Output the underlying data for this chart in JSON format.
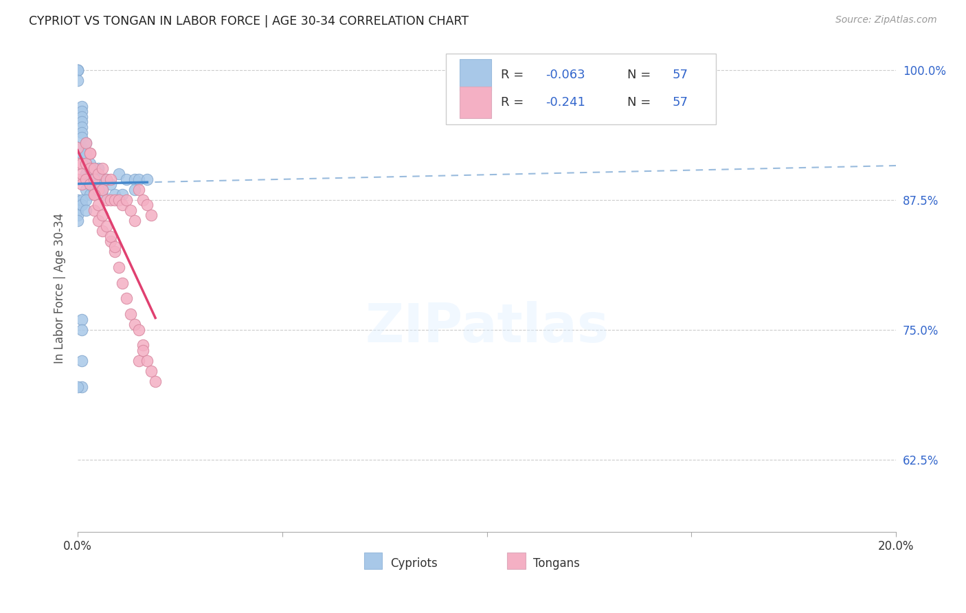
{
  "title": "CYPRIOT VS TONGAN IN LABOR FORCE | AGE 30-34 CORRELATION CHART",
  "source": "Source: ZipAtlas.com",
  "ylabel": "In Labor Force | Age 30-34",
  "xlim": [
    0.0,
    0.2
  ],
  "ylim": [
    0.555,
    1.025
  ],
  "yticks": [
    0.625,
    0.75,
    0.875,
    1.0
  ],
  "ytick_labels": [
    "62.5%",
    "75.0%",
    "87.5%",
    "100.0%"
  ],
  "xticks": [
    0.0,
    0.05,
    0.1,
    0.15,
    0.2
  ],
  "xtick_labels": [
    "0.0%",
    "",
    "",
    "",
    "20.0%"
  ],
  "cypriot_color": "#a8c8e8",
  "cypriot_edge": "#88aad0",
  "tongan_color": "#f4b0c4",
  "tongan_edge": "#d888a0",
  "cypriot_line_color": "#4488cc",
  "tongan_line_color": "#e04070",
  "dashed_line_color": "#99bbdd",
  "watermark": "ZIPatlas",
  "cypriot_x": [
    0.0,
    0.0,
    0.0,
    0.0,
    0.001,
    0.001,
    0.001,
    0.001,
    0.001,
    0.001,
    0.001,
    0.001,
    0.001,
    0.002,
    0.002,
    0.002,
    0.002,
    0.002,
    0.002,
    0.003,
    0.003,
    0.003,
    0.003,
    0.003,
    0.004,
    0.004,
    0.004,
    0.005,
    0.005,
    0.006,
    0.006,
    0.007,
    0.008,
    0.009,
    0.01,
    0.011,
    0.012,
    0.014,
    0.015,
    0.017,
    0.0,
    0.0,
    0.0,
    0.0,
    0.0,
    0.001,
    0.001,
    0.002,
    0.002,
    0.001,
    0.001,
    0.0,
    0.001,
    0.001,
    0.006,
    0.014
  ],
  "cypriot_y": [
    1.0,
    1.0,
    1.0,
    0.99,
    0.965,
    0.96,
    0.955,
    0.95,
    0.945,
    0.94,
    0.935,
    0.925,
    0.92,
    0.93,
    0.92,
    0.91,
    0.9,
    0.895,
    0.885,
    0.91,
    0.905,
    0.895,
    0.89,
    0.88,
    0.9,
    0.895,
    0.885,
    0.905,
    0.89,
    0.895,
    0.88,
    0.895,
    0.89,
    0.88,
    0.9,
    0.88,
    0.895,
    0.895,
    0.895,
    0.895,
    0.875,
    0.87,
    0.865,
    0.86,
    0.855,
    0.875,
    0.87,
    0.875,
    0.865,
    0.72,
    0.695,
    0.695,
    0.76,
    0.75,
    0.885,
    0.885
  ],
  "tongan_x": [
    0.0,
    0.0,
    0.0,
    0.001,
    0.001,
    0.001,
    0.002,
    0.002,
    0.002,
    0.003,
    0.003,
    0.003,
    0.004,
    0.004,
    0.004,
    0.005,
    0.005,
    0.006,
    0.006,
    0.007,
    0.007,
    0.008,
    0.008,
    0.009,
    0.01,
    0.011,
    0.012,
    0.013,
    0.014,
    0.015,
    0.015,
    0.016,
    0.017,
    0.018,
    0.004,
    0.005,
    0.006,
    0.008,
    0.009,
    0.01,
    0.011,
    0.012,
    0.013,
    0.014,
    0.016,
    0.003,
    0.004,
    0.005,
    0.006,
    0.007,
    0.008,
    0.009,
    0.015,
    0.016,
    0.017,
    0.018,
    0.019
  ],
  "tongan_y": [
    0.925,
    0.91,
    0.895,
    0.91,
    0.9,
    0.89,
    0.93,
    0.91,
    0.895,
    0.92,
    0.905,
    0.89,
    0.905,
    0.895,
    0.88,
    0.9,
    0.885,
    0.905,
    0.885,
    0.895,
    0.875,
    0.895,
    0.875,
    0.875,
    0.875,
    0.87,
    0.875,
    0.865,
    0.855,
    0.885,
    0.72,
    0.875,
    0.87,
    0.86,
    0.865,
    0.855,
    0.845,
    0.835,
    0.825,
    0.81,
    0.795,
    0.78,
    0.765,
    0.755,
    0.735,
    0.92,
    0.88,
    0.87,
    0.86,
    0.85,
    0.84,
    0.83,
    0.75,
    0.73,
    0.72,
    0.71,
    0.7
  ]
}
